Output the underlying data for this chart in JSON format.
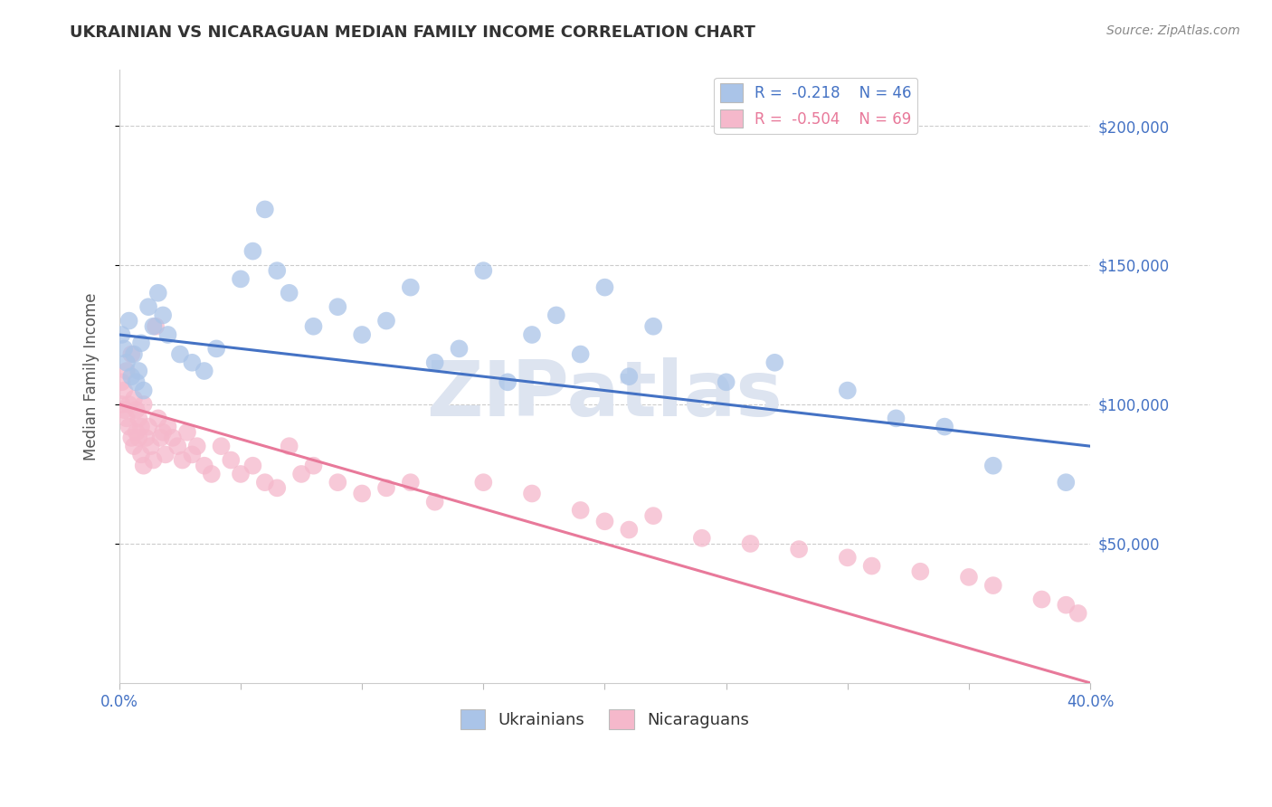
{
  "title": "UKRAINIAN VS NICARAGUAN MEDIAN FAMILY INCOME CORRELATION CHART",
  "source": "Source: ZipAtlas.com",
  "ylabel": "Median Family Income",
  "xlim": [
    0.0,
    0.4
  ],
  "ylim": [
    0,
    220000
  ],
  "yticks": [
    50000,
    100000,
    150000,
    200000
  ],
  "xticks": [
    0.0,
    0.05,
    0.1,
    0.15,
    0.2,
    0.25,
    0.3,
    0.35,
    0.4
  ],
  "ukrainian_color": "#aac4e8",
  "nicaraguan_color": "#f5b8cb",
  "ukrainian_line_color": "#4472c4",
  "nicaraguan_line_color": "#e8799a",
  "background_color": "#ffffff",
  "watermark_text": "ZIPatlas",
  "watermark_color": "#dde4f0",
  "ukrainian_x": [
    0.001,
    0.002,
    0.003,
    0.004,
    0.005,
    0.006,
    0.007,
    0.008,
    0.009,
    0.01,
    0.012,
    0.014,
    0.016,
    0.018,
    0.02,
    0.025,
    0.03,
    0.035,
    0.04,
    0.05,
    0.055,
    0.06,
    0.065,
    0.07,
    0.08,
    0.09,
    0.1,
    0.11,
    0.12,
    0.13,
    0.14,
    0.15,
    0.16,
    0.17,
    0.18,
    0.19,
    0.2,
    0.21,
    0.22,
    0.25,
    0.27,
    0.3,
    0.32,
    0.34,
    0.36,
    0.39
  ],
  "ukrainian_y": [
    125000,
    120000,
    115000,
    130000,
    110000,
    118000,
    108000,
    112000,
    122000,
    105000,
    135000,
    128000,
    140000,
    132000,
    125000,
    118000,
    115000,
    112000,
    120000,
    145000,
    155000,
    170000,
    148000,
    140000,
    128000,
    135000,
    125000,
    130000,
    142000,
    115000,
    120000,
    148000,
    108000,
    125000,
    132000,
    118000,
    142000,
    110000,
    128000,
    108000,
    115000,
    105000,
    95000,
    92000,
    78000,
    72000
  ],
  "nicaraguan_x": [
    0.001,
    0.001,
    0.002,
    0.002,
    0.003,
    0.003,
    0.004,
    0.004,
    0.005,
    0.005,
    0.006,
    0.006,
    0.007,
    0.007,
    0.008,
    0.008,
    0.009,
    0.009,
    0.01,
    0.01,
    0.011,
    0.012,
    0.013,
    0.014,
    0.015,
    0.016,
    0.017,
    0.018,
    0.019,
    0.02,
    0.022,
    0.024,
    0.026,
    0.028,
    0.03,
    0.032,
    0.035,
    0.038,
    0.042,
    0.046,
    0.05,
    0.055,
    0.06,
    0.065,
    0.07,
    0.075,
    0.08,
    0.09,
    0.1,
    0.11,
    0.12,
    0.13,
    0.15,
    0.17,
    0.19,
    0.2,
    0.21,
    0.22,
    0.24,
    0.26,
    0.28,
    0.3,
    0.31,
    0.33,
    0.35,
    0.36,
    0.38,
    0.39,
    0.395
  ],
  "nicaraguan_y": [
    108000,
    100000,
    105000,
    98000,
    112000,
    95000,
    100000,
    92000,
    118000,
    88000,
    102000,
    85000,
    98000,
    90000,
    95000,
    88000,
    92000,
    82000,
    100000,
    78000,
    88000,
    92000,
    85000,
    80000,
    128000,
    95000,
    88000,
    90000,
    82000,
    92000,
    88000,
    85000,
    80000,
    90000,
    82000,
    85000,
    78000,
    75000,
    85000,
    80000,
    75000,
    78000,
    72000,
    70000,
    85000,
    75000,
    78000,
    72000,
    68000,
    70000,
    72000,
    65000,
    72000,
    68000,
    62000,
    58000,
    55000,
    60000,
    52000,
    50000,
    48000,
    45000,
    42000,
    40000,
    38000,
    35000,
    30000,
    28000,
    25000
  ]
}
